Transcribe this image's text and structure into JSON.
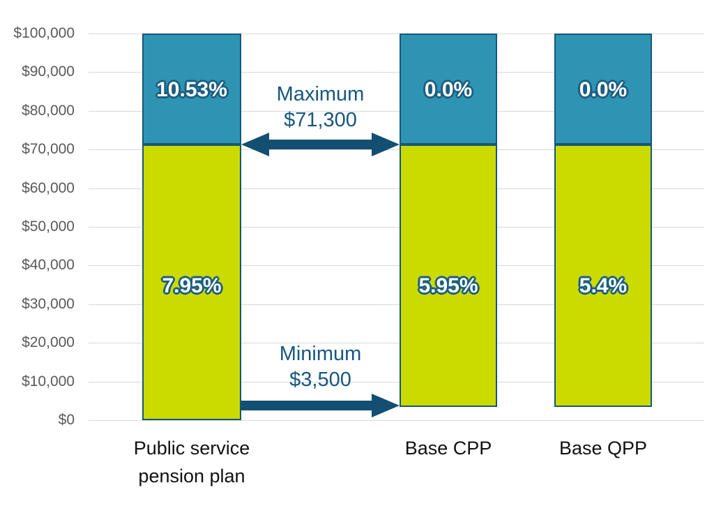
{
  "chart_data": {
    "type": "bar",
    "stacked": true,
    "title": "",
    "categories": [
      "Public service pension plan",
      "Base CPP",
      "Base QPP"
    ],
    "series": [
      {
        "name": "lower-segment",
        "color": "#CBDB00",
        "rate_labels": [
          "7.95%",
          "5.95%",
          "5.4%"
        ],
        "from": [
          0,
          3500,
          3500
        ],
        "to": [
          71300,
          71300,
          71300
        ]
      },
      {
        "name": "upper-segment",
        "color": "#2F94B3",
        "rate_labels": [
          "10.53%",
          "0.0%",
          "0.0%"
        ],
        "from": [
          71300,
          71300,
          71300
        ],
        "to": [
          100000,
          100000,
          100000
        ]
      }
    ],
    "y_axis": {
      "min": 0,
      "max": 100000,
      "step": 10000,
      "tick_labels": [
        "$0",
        "$10,000",
        "$20,000",
        "$30,000",
        "$40,000",
        "$50,000",
        "$60,000",
        "$70,000",
        "$80,000",
        "$90,000",
        "$100,000"
      ]
    },
    "annotations": [
      {
        "id": "maximum",
        "label_lines": [
          "Maximum",
          "$71,300"
        ],
        "value": 71300,
        "arrow": "double"
      },
      {
        "id": "minimum",
        "label_lines": [
          "Minimum",
          "$3,500"
        ],
        "value": 3500,
        "arrow": "right"
      }
    ],
    "grid": true,
    "legend": "none",
    "colors": {
      "gridline": "#D9D9D9",
      "axis_text": "#595959",
      "category_text": "#111111",
      "annotation_text": "#17567E",
      "arrow": "#134F72",
      "bar_border": "#16567A",
      "value_text": "#FFFFFF",
      "value_outline": "#1B5F80"
    }
  }
}
